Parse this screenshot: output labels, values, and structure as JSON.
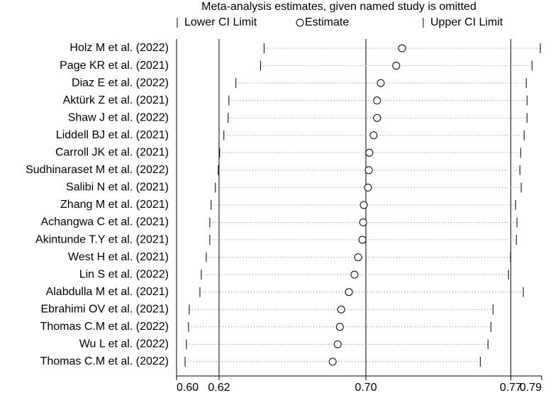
{
  "chart_data": {
    "type": "interval",
    "title": "Meta-analysis estimates, given named study is omitted",
    "categories": [
      "Holz M et al. (2022)",
      "Page KR et al. (2021)",
      "Diaz E et al. (2022)",
      "Aktürk Z et al. (2021)",
      "Shaw J et al. (2022)",
      "Liddell BJ et al. (2021)",
      "Carroll JK et al. (2021)",
      "Sudhinaraset M et al. (2022)",
      "Salibi N et al. (2021)",
      "Zhang M et al. (2021)",
      "Achangwa C et al. (2021)",
      "Akintunde T.Y et al. (2021)",
      "West H et al. (2021)",
      "Lin S et al. (2022)",
      "Alabdulla M et al. (2021)",
      "Ebrahimi OV et al. (2021)",
      "Thomas C.M et al. (2022)",
      "Wu L et al. (2022)",
      "Thomas C.M et al. (2022)"
    ],
    "series": [
      {
        "name": "Lower CI Limit",
        "color": "#000000",
        "values": [
          0.6443,
          0.6425,
          0.6297,
          0.6261,
          0.6257,
          0.6235,
          0.6213,
          0.6206,
          0.6191,
          0.6169,
          0.6162,
          0.6162,
          0.6144,
          0.6118,
          0.6111,
          0.6056,
          0.6052,
          0.6041,
          0.6034
        ]
      },
      {
        "name": "Estimate",
        "color": "#000000",
        "values": [
          0.7157,
          0.7127,
          0.7047,
          0.7028,
          0.7028,
          0.701,
          0.6988,
          0.6985,
          0.6981,
          0.6959,
          0.6956,
          0.6952,
          0.693,
          0.6911,
          0.6882,
          0.6842,
          0.6835,
          0.6824,
          0.6798
        ]
      },
      {
        "name": "Upper CI Limit",
        "color": "#000000",
        "values": [
          0.7873,
          0.783,
          0.78,
          0.7804,
          0.7804,
          0.7789,
          0.7771,
          0.7767,
          0.7774,
          0.7745,
          0.7752,
          0.7749,
          0.7719,
          0.7708,
          0.7785,
          0.7628,
          0.7617,
          0.7602,
          0.7562
        ]
      }
    ],
    "xlim": [
      0.599,
      0.788
    ],
    "xticks": [
      {
        "value": 0.599,
        "label": "0.60"
      },
      {
        "value": 0.621,
        "label": "0.62"
      },
      {
        "value": 0.697,
        "label": "0.70"
      },
      {
        "value": 0.772,
        "label": "0.77"
      },
      {
        "value": 0.788,
        "label": "0.79"
      }
    ]
  }
}
